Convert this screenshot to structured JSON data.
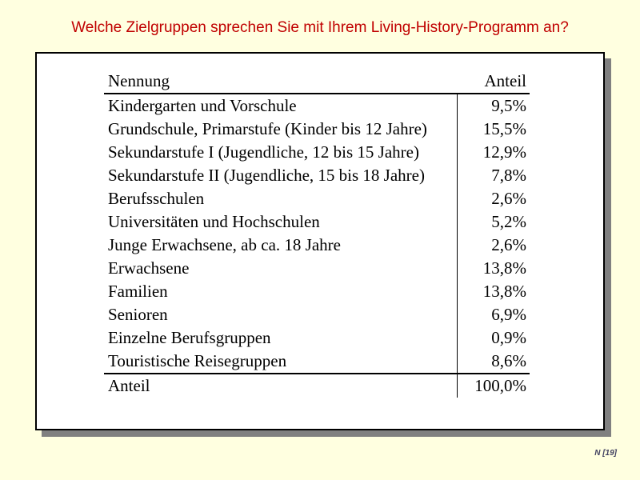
{
  "slide": {
    "title": "Welche Zielgruppen sprechen Sie mit Ihrem Living-History-Programm an?",
    "footnote": "N [19]",
    "colors": {
      "background": "#FFFFE0",
      "title_text": "#C00000",
      "box_border": "#000000",
      "box_shadow": "#808080",
      "table_text": "#000000",
      "footnote_text": "#404060"
    }
  },
  "table": {
    "headers": {
      "label": "Nennung",
      "value": "Anteil"
    },
    "rows": [
      {
        "label": "Kindergarten und Vorschule",
        "value": "9,5%"
      },
      {
        "label": "Grundschule, Primarstufe (Kinder bis 12 Jahre)",
        "value": "15,5%"
      },
      {
        "label": "Sekundarstufe I (Jugendliche, 12 bis 15 Jahre)",
        "value": "12,9%"
      },
      {
        "label": "Sekundarstufe II (Jugendliche, 15 bis 18 Jahre)",
        "value": "7,8%"
      },
      {
        "label": "Berufsschulen",
        "value": "2,6%"
      },
      {
        "label": "Universitäten und Hochschulen",
        "value": "5,2%"
      },
      {
        "label": "Junge Erwachsene, ab ca. 18 Jahre",
        "value": "2,6%"
      },
      {
        "label": "Erwachsene",
        "value": "13,8%"
      },
      {
        "label": "Familien",
        "value": "13,8%"
      },
      {
        "label": "Senioren",
        "value": "6,9%"
      },
      {
        "label": "Einzelne Berufsgruppen",
        "value": "0,9%"
      },
      {
        "label": "Touristische Reisegruppen",
        "value": "8,6%"
      }
    ],
    "total": {
      "label": "Anteil",
      "value": "100,0%"
    }
  },
  "chart_data": {
    "type": "table",
    "title": "Welche Zielgruppen sprechen Sie mit Ihrem Living-History-Programm an?",
    "columns": [
      "Nennung",
      "Anteil"
    ],
    "categories": [
      "Kindergarten und Vorschule",
      "Grundschule, Primarstufe (Kinder bis 12 Jahre)",
      "Sekundarstufe I (Jugendliche, 12 bis 15 Jahre)",
      "Sekundarstufe II (Jugendliche, 15 bis 18 Jahre)",
      "Berufsschulen",
      "Universitäten und Hochschulen",
      "Junge Erwachsene, ab ca. 18 Jahre",
      "Erwachsene",
      "Familien",
      "Senioren",
      "Einzelne Berufsgruppen",
      "Touristische Reisegruppen"
    ],
    "values": [
      9.5,
      15.5,
      12.9,
      7.8,
      2.6,
      5.2,
      2.6,
      13.8,
      13.8,
      6.9,
      0.9,
      8.6
    ],
    "unit": "%",
    "total_row": {
      "label": "Anteil",
      "value": 100.0
    },
    "sample_note": "N [19]"
  }
}
